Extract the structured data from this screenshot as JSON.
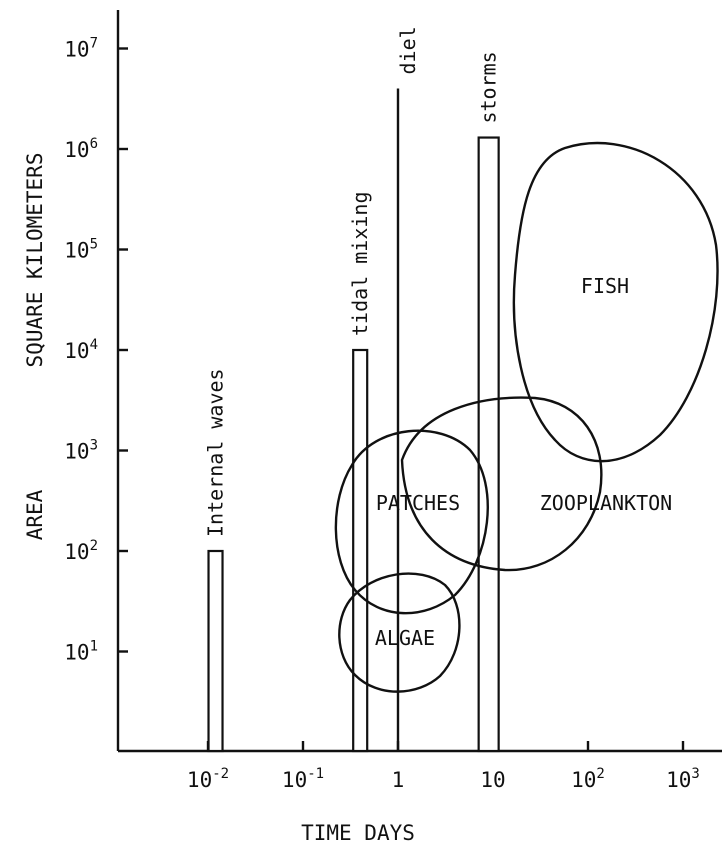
{
  "chart_data": {
    "type": "diagram",
    "xlabel": "TIME DAYS",
    "ylabel_left": "AREA",
    "ylabel_right": "SQUARE KILOMETERS",
    "x_scale": "log",
    "y_scale": "log",
    "x_ticks": [
      {
        "base": "10",
        "exp": "-2"
      },
      {
        "base": "10",
        "exp": "-1"
      },
      {
        "base": "1",
        "exp": ""
      },
      {
        "base": "10",
        "exp": ""
      },
      {
        "base": "10",
        "exp": "2"
      },
      {
        "base": "10",
        "exp": "3"
      }
    ],
    "y_ticks": [
      {
        "base": "10",
        "exp": "1"
      },
      {
        "base": "10",
        "exp": "2"
      },
      {
        "base": "10",
        "exp": "3"
      },
      {
        "base": "10",
        "exp": "4"
      },
      {
        "base": "10",
        "exp": "5"
      },
      {
        "base": "10",
        "exp": "6"
      },
      {
        "base": "10",
        "exp": "7"
      }
    ],
    "physical_processes": [
      {
        "label": "Internal waves",
        "time_days": 0.012,
        "area_km2": 100
      },
      {
        "label": "tidal mixing",
        "time_days": 0.4,
        "area_km2": 10000
      },
      {
        "label": "diel",
        "time_days": 1,
        "area_km2": 4000000
      },
      {
        "label": "storms",
        "time_days": 9,
        "area_km2": 1300000
      }
    ],
    "biological_regions": [
      {
        "label": "ALGAE"
      },
      {
        "label": "PATCHES"
      },
      {
        "label": "ZOOPLANKTON"
      },
      {
        "label": "FISH"
      }
    ]
  }
}
